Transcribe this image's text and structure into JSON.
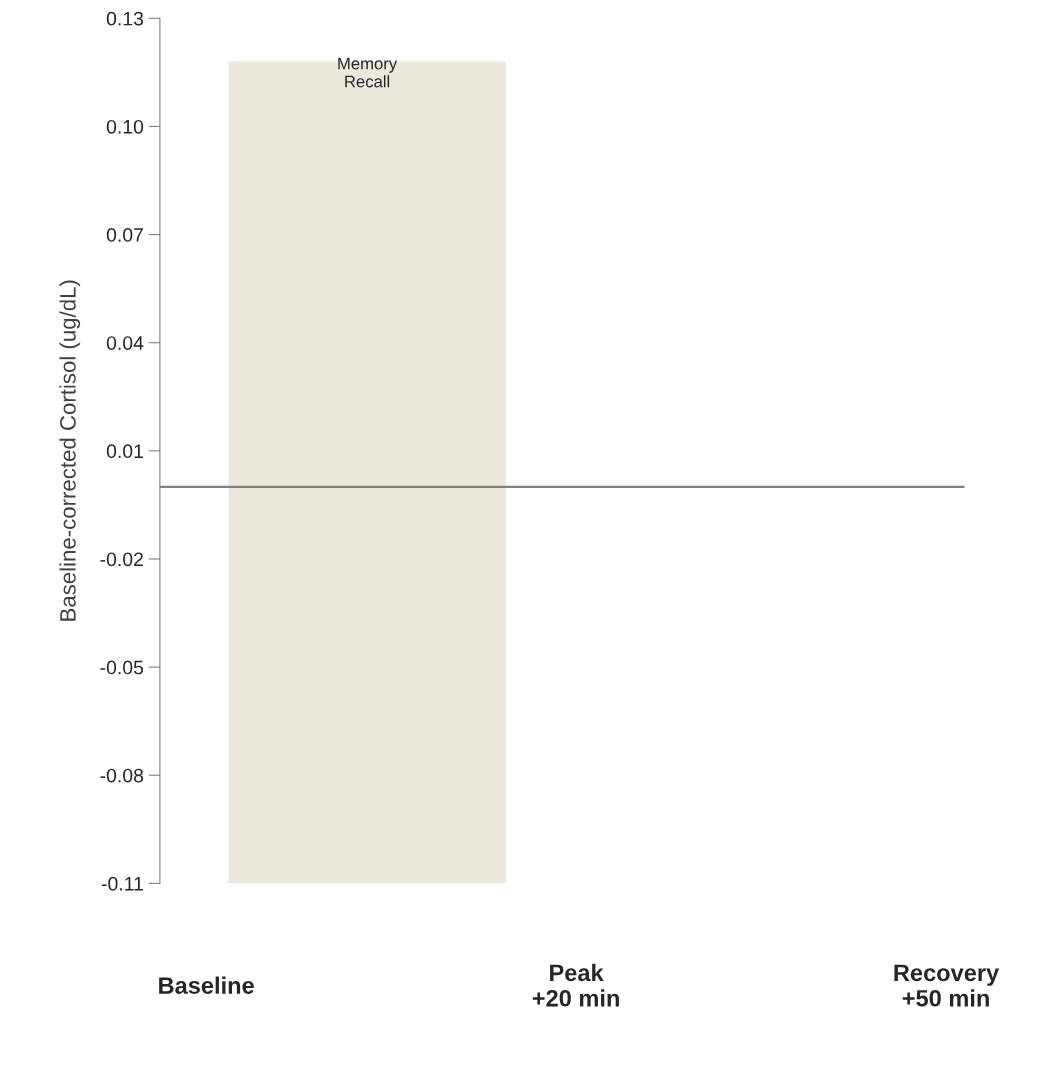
{
  "chart_data": {
    "type": "line",
    "ylabel": "Baseline-corrected Cortisol (ug/dL)",
    "categories": [
      "Baseline",
      "Peak\n+20 min",
      "Recovery\n+50 min"
    ],
    "ylim": [
      -0.11,
      0.13
    ],
    "yticks": [
      {
        "value": -0.11,
        "label": "-0.11"
      },
      {
        "value": -0.08,
        "label": "-0.08"
      },
      {
        "value": -0.05,
        "label": "-0.05"
      },
      {
        "value": -0.02,
        "label": "-0.02"
      },
      {
        "value": 0.01,
        "label": "0.01"
      },
      {
        "value": 0.04,
        "label": "0.04"
      },
      {
        "value": 0.07,
        "label": "0.07"
      },
      {
        "value": 0.1,
        "label": "0.10"
      },
      {
        "value": 0.13,
        "label": "0.13"
      }
    ],
    "ref_lines": [
      {
        "axis": "y",
        "value": 0,
        "color": "#808080"
      }
    ],
    "annotations": [
      "Memory\nRecall"
    ],
    "grid": false
  }
}
